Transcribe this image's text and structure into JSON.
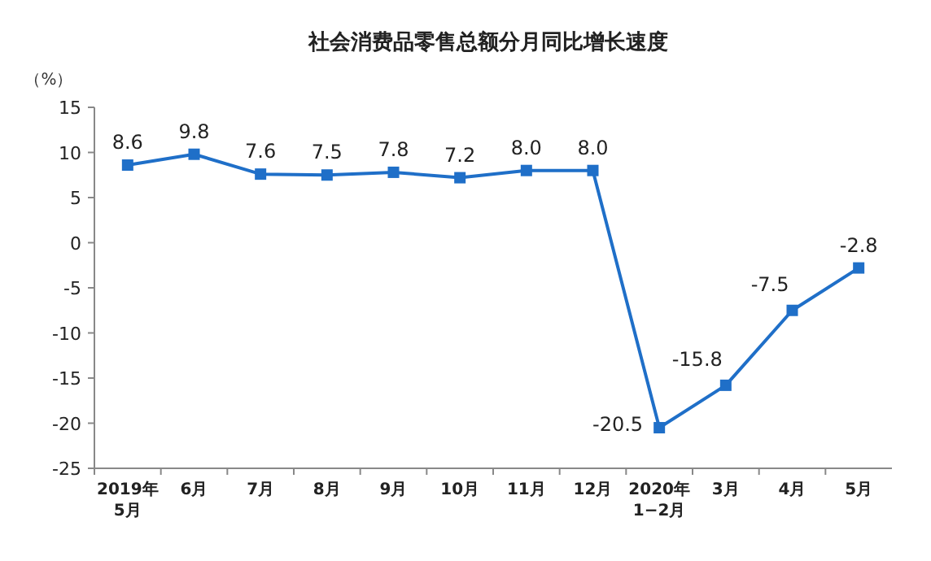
{
  "chart_data": {
    "type": "line",
    "title": "社会消费品零售总额分月同比增长速度",
    "ylabel": "（%）",
    "categories": [
      "2019年\n5月",
      "6月",
      "7月",
      "8月",
      "9月",
      "10月",
      "11月",
      "12月",
      "2020年\n1−2月",
      "3月",
      "4月",
      "5月"
    ],
    "series": [
      {
        "color": "#1f6fc8",
        "values": [
          8.6,
          9.8,
          7.6,
          7.5,
          7.8,
          7.2,
          8.0,
          8.0,
          -20.5,
          -15.8,
          -7.5,
          -2.8
        ],
        "value_labels": [
          "8.6",
          "9.8",
          "7.6",
          "7.5",
          "7.8",
          "7.2",
          "8.0",
          "8.0",
          "-20.5",
          "-15.8",
          "-7.5",
          "-2.8"
        ]
      }
    ],
    "ylim": [
      -25,
      15
    ],
    "yticks": [
      -25,
      -20,
      -15,
      -10,
      -5,
      0,
      5,
      10,
      15
    ],
    "marker": "square",
    "grid": false
  }
}
